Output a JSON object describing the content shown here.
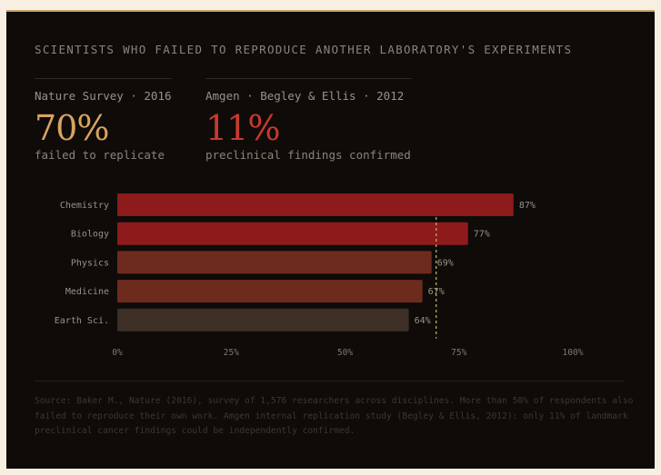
{
  "title": "SCIENTISTS WHO FAILED TO REPRODUCE ANOTHER LABORATORY'S EXPERIMENTS",
  "stats": [
    {
      "label": "Nature Survey · 2016",
      "value": "70%",
      "desc": "failed to replicate",
      "color": "#d9a35f"
    },
    {
      "label": "Amgen · Begley & Ellis · 2012",
      "value": "11%",
      "desc": "preclinical findings confirmed",
      "color": "#c83a2b"
    }
  ],
  "chart_data": {
    "type": "bar",
    "orientation": "horizontal",
    "categories": [
      "Chemistry",
      "Biology",
      "Physics",
      "Medicine",
      "Earth Sci."
    ],
    "values": [
      87,
      77,
      69,
      67,
      64
    ],
    "value_labels": [
      "87%",
      "77%",
      "69%",
      "67%",
      "64%"
    ],
    "bar_colors": [
      "#8d1b1b",
      "#8d1b1b",
      "#6d2b1e",
      "#6d2b1e",
      "#3d2f25"
    ],
    "xlim": [
      0,
      100
    ],
    "xticks": [
      0,
      25,
      50,
      75,
      100
    ],
    "xtick_labels": [
      "0%",
      "25%",
      "50%",
      "75%",
      "100%"
    ],
    "reference_line": {
      "value": 70,
      "style": "dashed",
      "color": "#c9a36a"
    },
    "grid": false
  },
  "source": "Source: Baker M., Nature (2016), survey of 1,576 researchers across disciplines. More than 50% of respondents also failed to reproduce their own work. Amgen internal replication study (Begley & Ellis, 2012): only 11% of landmark preclinical cancer findings could be independently confirmed."
}
